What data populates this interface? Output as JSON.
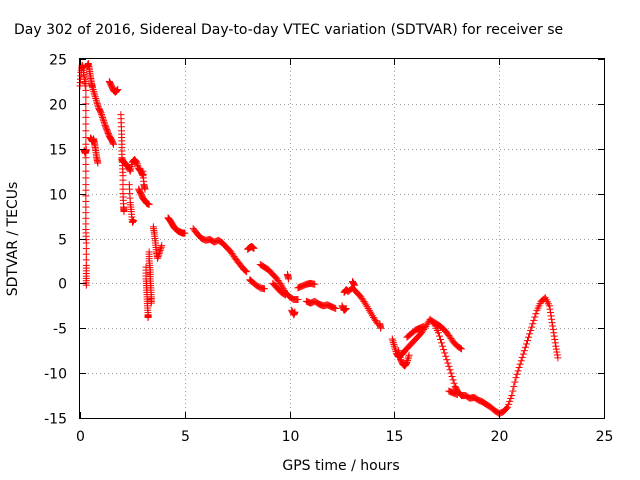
{
  "chart_data": {
    "type": "scatter",
    "title": "Day 302 of 2016, Sidereal Day-to-day VTEC variation (SDTVAR) for receiver se",
    "xlabel": "GPS time / hours",
    "ylabel": "SDTVAR / TECUs",
    "xlim": [
      0,
      25
    ],
    "ylim": [
      -15,
      25
    ],
    "xticks": [
      0,
      5,
      10,
      15,
      20,
      25
    ],
    "yticks": [
      25,
      20,
      15,
      10,
      5,
      0,
      -5,
      -10,
      -15
    ],
    "grid": true,
    "marker": "+",
    "color": "#ff0000",
    "series": [
      {
        "name": "SDTVAR",
        "segments": [
          [
            [
              0.0,
              22.0
            ],
            [
              0.05,
              23.5
            ],
            [
              0.1,
              24.3
            ],
            [
              0.15,
              24.0
            ],
            [
              0.2,
              23.0
            ],
            [
              0.25,
              22.0
            ]
          ],
          [
            [
              0.2,
              14.8
            ],
            [
              0.25,
              14.5
            ],
            [
              0.3,
              14.9
            ]
          ],
          [
            [
              0.35,
              24.2
            ],
            [
              0.4,
              24.5
            ],
            [
              0.45,
              23.8
            ],
            [
              0.5,
              23.0
            ],
            [
              0.55,
              22.3
            ],
            [
              0.6,
              21.8
            ],
            [
              0.7,
              21.0
            ],
            [
              0.8,
              20.2
            ],
            [
              0.9,
              19.5
            ],
            [
              1.0,
              19.0
            ],
            [
              1.1,
              18.3
            ],
            [
              1.2,
              17.6
            ],
            [
              1.3,
              17.0
            ],
            [
              1.4,
              16.4
            ],
            [
              1.5,
              16.0
            ],
            [
              1.6,
              15.5
            ]
          ],
          [
            [
              0.28,
              23.0
            ],
            [
              0.28,
              20.0
            ],
            [
              0.28,
              17.0
            ],
            [
              0.28,
              14.0
            ],
            [
              0.28,
              11.0
            ],
            [
              0.28,
              8.5
            ],
            [
              0.28,
              6.0
            ],
            [
              0.3,
              4.5
            ],
            [
              0.3,
              2.0
            ],
            [
              0.3,
              0.8
            ],
            [
              0.3,
              -0.2
            ]
          ],
          [
            [
              0.5,
              16.2
            ],
            [
              0.55,
              16.0
            ],
            [
              0.6,
              15.8
            ],
            [
              0.65,
              16.1
            ],
            [
              0.7,
              15.5
            ],
            [
              0.75,
              14.8
            ],
            [
              0.8,
              14.0
            ],
            [
              0.85,
              13.4
            ]
          ],
          [
            [
              1.4,
              22.5
            ],
            [
              1.5,
              22.0
            ],
            [
              1.6,
              21.5
            ],
            [
              1.7,
              21.3
            ],
            [
              1.8,
              21.6
            ]
          ],
          [
            [
              1.95,
              18.8
            ],
            [
              1.98,
              17.0
            ],
            [
              2.0,
              15.5
            ],
            [
              2.0,
              14.0
            ],
            [
              2.02,
              13.5
            ],
            [
              2.05,
              12.0
            ],
            [
              2.05,
              10.0
            ],
            [
              2.08,
              8.5
            ],
            [
              2.1,
              8.0
            ]
          ],
          [
            [
              2.0,
              13.8
            ],
            [
              2.1,
              13.5
            ],
            [
              2.2,
              13.2
            ],
            [
              2.3,
              13.0
            ],
            [
              2.4,
              12.5
            ],
            [
              2.5,
              13.5
            ],
            [
              2.6,
              13.8
            ],
            [
              2.7,
              13.5
            ],
            [
              2.8,
              12.8
            ],
            [
              2.9,
              12.5
            ],
            [
              3.0,
              12.0
            ]
          ],
          [
            [
              2.35,
              11.0
            ],
            [
              2.4,
              9.0
            ],
            [
              2.45,
              8.0
            ],
            [
              2.5,
              6.8
            ],
            [
              2.55,
              7.0
            ]
          ],
          [
            [
              2.8,
              10.5
            ],
            [
              2.9,
              10.0
            ],
            [
              3.0,
              9.5
            ],
            [
              3.1,
              9.2
            ],
            [
              3.2,
              8.9
            ],
            [
              3.3,
              8.8
            ]
          ],
          [
            [
              3.0,
              12.5
            ],
            [
              3.05,
              11.0
            ],
            [
              3.1,
              10.5
            ]
          ],
          [
            [
              3.15,
              1.8
            ],
            [
              3.15,
              0.5
            ],
            [
              3.18,
              -0.5
            ],
            [
              3.2,
              -1.5
            ],
            [
              3.22,
              -2.5
            ],
            [
              3.25,
              -3.5
            ],
            [
              3.25,
              -3.8
            ]
          ],
          [
            [
              3.3,
              3.5
            ],
            [
              3.3,
              2.5
            ],
            [
              3.35,
              1.5
            ],
            [
              3.35,
              0.5
            ],
            [
              3.38,
              -0.5
            ],
            [
              3.4,
              -1.5
            ],
            [
              3.4,
              -2.2
            ]
          ],
          [
            [
              3.5,
              6.3
            ],
            [
              3.55,
              5.5
            ],
            [
              3.6,
              4.5
            ],
            [
              3.65,
              3.5
            ],
            [
              3.7,
              2.8
            ],
            [
              3.8,
              3.5
            ],
            [
              3.9,
              4.2
            ]
          ],
          [
            [
              4.2,
              7.3
            ],
            [
              4.3,
              7.0
            ],
            [
              4.4,
              6.6
            ],
            [
              4.5,
              6.2
            ],
            [
              4.6,
              6.0
            ],
            [
              4.7,
              5.8
            ],
            [
              4.8,
              5.7
            ],
            [
              4.9,
              5.6
            ],
            [
              5.0,
              5.6
            ]
          ],
          [
            [
              5.4,
              6.1
            ],
            [
              5.6,
              5.5
            ],
            [
              5.8,
              5.0
            ],
            [
              6.0,
              4.8
            ],
            [
              6.2,
              4.9
            ],
            [
              6.4,
              4.6
            ],
            [
              6.6,
              4.8
            ],
            [
              6.8,
              4.5
            ],
            [
              7.0,
              4.0
            ],
            [
              7.2,
              3.5
            ],
            [
              7.4,
              2.8
            ],
            [
              7.6,
              2.2
            ],
            [
              7.8,
              1.6
            ],
            [
              7.95,
              1.3
            ]
          ],
          [
            [
              8.0,
              3.8
            ],
            [
              8.1,
              4.0
            ],
            [
              8.2,
              4.1
            ],
            [
              8.3,
              3.9
            ]
          ],
          [
            [
              8.1,
              0.4
            ],
            [
              8.2,
              0.2
            ],
            [
              8.4,
              -0.2
            ],
            [
              8.6,
              -0.5
            ],
            [
              8.8,
              -0.6
            ]
          ],
          [
            [
              8.6,
              2.1
            ],
            [
              8.8,
              1.8
            ],
            [
              9.0,
              1.5
            ],
            [
              9.2,
              1.0
            ],
            [
              9.4,
              0.5
            ],
            [
              9.6,
              -0.2
            ],
            [
              9.8,
              -1.0
            ],
            [
              10.0,
              -1.5
            ],
            [
              10.2,
              -1.8
            ],
            [
              10.4,
              -1.8
            ]
          ],
          [
            [
              9.2,
              0.0
            ],
            [
              9.4,
              -0.5
            ],
            [
              9.6,
              -1.0
            ],
            [
              9.8,
              -1.3
            ]
          ],
          [
            [
              9.9,
              1.0
            ],
            [
              9.95,
              0.5
            ]
          ],
          [
            [
              10.1,
              -3.0
            ],
            [
              10.2,
              -3.5
            ],
            [
              10.25,
              -3.2
            ]
          ],
          [
            [
              10.4,
              -0.5
            ],
            [
              10.6,
              -0.3
            ],
            [
              10.8,
              -0.1
            ],
            [
              11.0,
              0.0
            ],
            [
              11.2,
              -0.1
            ]
          ],
          [
            [
              10.8,
              -2.0
            ],
            [
              11.0,
              -2.2
            ],
            [
              11.2,
              -2.0
            ],
            [
              11.4,
              -2.3
            ],
            [
              11.6,
              -2.5
            ],
            [
              11.8,
              -2.4
            ],
            [
              12.0,
              -2.6
            ],
            [
              12.2,
              -2.8
            ]
          ],
          [
            [
              12.5,
              -2.5
            ],
            [
              12.6,
              -3.0
            ],
            [
              12.7,
              -2.8
            ]
          ],
          [
            [
              12.6,
              -1.0
            ],
            [
              12.7,
              -0.7
            ],
            [
              12.8,
              -0.9
            ],
            [
              13.0,
              -0.5
            ],
            [
              13.2,
              -1.0
            ],
            [
              13.4,
              -1.5
            ],
            [
              13.6,
              -2.2
            ],
            [
              13.8,
              -3.0
            ],
            [
              14.0,
              -3.8
            ],
            [
              14.2,
              -4.5
            ]
          ],
          [
            [
              13.0,
              0.2
            ],
            [
              13.1,
              -0.2
            ]
          ],
          [
            [
              14.3,
              -4.5
            ],
            [
              14.35,
              -5.0
            ]
          ],
          [
            [
              14.9,
              -6.2
            ],
            [
              15.0,
              -7.0
            ],
            [
              15.1,
              -7.8
            ],
            [
              15.2,
              -8.2
            ],
            [
              15.3,
              -8.0
            ],
            [
              15.4,
              -7.8
            ],
            [
              15.5,
              -7.5
            ],
            [
              15.7,
              -7.0
            ],
            [
              15.9,
              -6.5
            ],
            [
              16.1,
              -6.0
            ],
            [
              16.3,
              -5.5
            ],
            [
              16.5,
              -4.8
            ],
            [
              16.7,
              -4.0
            ],
            [
              16.9,
              -4.5
            ],
            [
              17.1,
              -5.5
            ],
            [
              17.3,
              -7.0
            ],
            [
              17.5,
              -8.5
            ],
            [
              17.7,
              -10.0
            ],
            [
              17.9,
              -11.5
            ],
            [
              18.0,
              -12.0
            ],
            [
              18.2,
              -12.5
            ],
            [
              18.4,
              -12.5
            ],
            [
              18.6,
              -12.8
            ],
            [
              18.8,
              -12.7
            ],
            [
              19.0,
              -13.0
            ],
            [
              19.2,
              -13.2
            ],
            [
              19.4,
              -13.5
            ],
            [
              19.6,
              -13.8
            ],
            [
              19.8,
              -14.2
            ],
            [
              20.0,
              -14.5
            ],
            [
              20.2,
              -14.3
            ],
            [
              20.4,
              -13.8
            ],
            [
              20.6,
              -12.5
            ],
            [
              20.8,
              -10.5
            ],
            [
              21.0,
              -9.0
            ],
            [
              21.2,
              -7.5
            ],
            [
              21.4,
              -6.0
            ],
            [
              21.6,
              -4.5
            ],
            [
              21.8,
              -3.0
            ],
            [
              22.0,
              -2.0
            ],
            [
              22.2,
              -1.6
            ],
            [
              22.4,
              -2.5
            ],
            [
              22.5,
              -4.0
            ],
            [
              22.6,
              -5.5
            ],
            [
              22.7,
              -7.0
            ],
            [
              22.8,
              -8.3
            ]
          ],
          [
            [
              15.2,
              -7.5
            ],
            [
              15.3,
              -8.5
            ],
            [
              15.4,
              -9.0
            ],
            [
              15.5,
              -9.2
            ],
            [
              15.6,
              -8.8
            ],
            [
              15.7,
              -8.0
            ]
          ],
          [
            [
              15.6,
              -6.0
            ],
            [
              15.8,
              -5.6
            ],
            [
              16.0,
              -5.2
            ],
            [
              16.2,
              -5.0
            ],
            [
              16.4,
              -4.8
            ]
          ],
          [
            [
              16.8,
              -4.2
            ],
            [
              17.0,
              -4.5
            ],
            [
              17.2,
              -4.8
            ],
            [
              17.4,
              -5.2
            ],
            [
              17.6,
              -5.8
            ],
            [
              17.8,
              -6.5
            ],
            [
              18.0,
              -7.0
            ],
            [
              18.2,
              -7.3
            ]
          ],
          [
            [
              17.6,
              -12.0
            ],
            [
              17.8,
              -12.2
            ],
            [
              18.0,
              -12.4
            ]
          ]
        ]
      }
    ]
  }
}
